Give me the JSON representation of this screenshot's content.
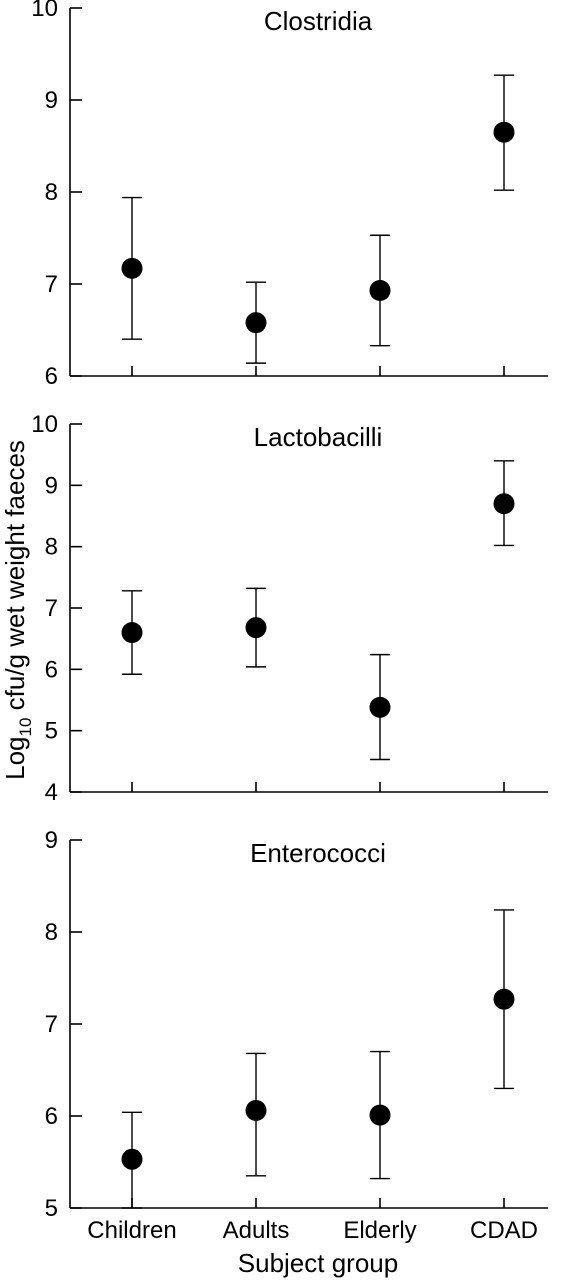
{
  "chart_data": [
    {
      "type": "scatter",
      "title": "Clostridia",
      "categories": [
        "Children",
        "Adults",
        "Elderly",
        "CDAD"
      ],
      "ylim": [
        6,
        10
      ],
      "yticks": [
        "6",
        "7",
        "8",
        "9",
        "10"
      ],
      "series": [
        {
          "values": [
            7.17,
            6.58,
            6.93,
            8.65
          ],
          "lower": [
            6.4,
            6.14,
            6.33,
            8.02
          ],
          "upper": [
            7.94,
            7.02,
            7.53,
            9.27
          ]
        }
      ]
    },
    {
      "type": "scatter",
      "title": "Lactobacilli",
      "categories": [
        "Children",
        "Adults",
        "Elderly",
        "CDAD"
      ],
      "ylim": [
        4,
        10
      ],
      "yticks": [
        "4",
        "5",
        "6",
        "7",
        "8",
        "9",
        "10"
      ],
      "series": [
        {
          "values": [
            6.6,
            6.68,
            5.38,
            8.7
          ],
          "lower": [
            5.92,
            6.04,
            4.53,
            8.02
          ],
          "upper": [
            7.28,
            7.32,
            6.24,
            9.4
          ]
        }
      ]
    },
    {
      "type": "scatter",
      "title": "Enterococci",
      "categories": [
        "Children",
        "Adults",
        "Elderly",
        "CDAD"
      ],
      "ylim": [
        5,
        9
      ],
      "yticks": [
        "5",
        "6",
        "7",
        "8",
        "9"
      ],
      "series": [
        {
          "values": [
            5.53,
            6.06,
            6.01,
            7.27
          ],
          "lower": [
            5.0,
            5.35,
            5.32,
            6.3
          ],
          "upper": [
            6.04,
            6.68,
            6.7,
            8.24
          ]
        }
      ]
    }
  ],
  "axes": {
    "ylabel_main": "Log",
    "ylabel_sub": "10",
    "ylabel_rest": " cfu/g wet weight faeces",
    "xlabel": "Subject group"
  }
}
